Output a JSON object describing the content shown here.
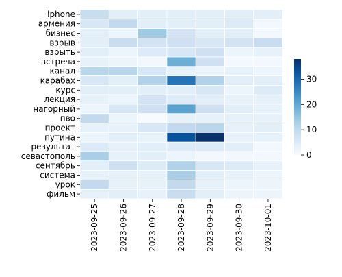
{
  "chart_data": {
    "type": "heatmap",
    "title": "",
    "xlabel": "",
    "ylabel": "",
    "x_categories": [
      "2023-09-25",
      "2023-09-26",
      "2023-09-27",
      "2023-09-28",
      "2023-09-29",
      "2023-09-30",
      "2023-10-01"
    ],
    "y_categories": [
      "iphone",
      "армения",
      "бизнес",
      "взрыв",
      "взрыть",
      "встреча",
      "канал",
      "карабах",
      "курс",
      "лекция",
      "нагорный",
      "пво",
      "проект",
      "путина",
      "результат",
      "севастополь",
      "сентябрь",
      "система",
      "урок",
      "фильм"
    ],
    "values": [
      [
        9,
        4,
        4,
        4,
        4,
        4,
        4
      ],
      [
        6,
        10,
        4,
        4,
        4,
        5,
        1
      ],
      [
        4,
        2,
        14,
        7,
        4,
        4,
        1
      ],
      [
        4,
        9,
        7,
        8,
        6,
        7,
        9
      ],
      [
        4,
        2,
        5,
        6,
        8,
        2,
        3
      ],
      [
        3,
        2,
        1,
        19,
        8,
        1,
        1
      ],
      [
        11,
        11,
        6,
        3,
        2,
        3,
        2
      ],
      [
        6,
        4,
        12,
        28,
        12,
        4,
        4
      ],
      [
        4,
        4,
        4,
        4,
        6,
        2,
        5
      ],
      [
        3,
        2,
        7,
        5,
        4,
        3,
        3
      ],
      [
        2,
        6,
        8,
        21,
        8,
        4,
        3
      ],
      [
        10,
        2,
        0,
        3,
        3,
        3,
        3
      ],
      [
        3,
        3,
        6,
        10,
        11,
        3,
        4
      ],
      [
        2,
        4,
        3,
        33,
        38,
        3,
        3
      ],
      [
        5,
        3,
        4,
        5,
        5,
        4,
        1
      ],
      [
        13,
        3,
        4,
        2,
        1,
        1,
        1
      ],
      [
        4,
        8,
        5,
        12,
        6,
        5,
        3
      ],
      [
        3,
        3,
        3,
        13,
        4,
        3,
        2
      ],
      [
        10,
        3,
        3,
        10,
        3,
        2,
        2
      ],
      [
        3,
        4,
        3,
        9,
        4,
        2,
        2
      ]
    ],
    "colormap": "Blues",
    "vmin": 0,
    "vmax": 38,
    "colorbar_ticks": [
      0,
      10,
      20,
      30
    ],
    "grid_lines_color": "#ffffff"
  }
}
